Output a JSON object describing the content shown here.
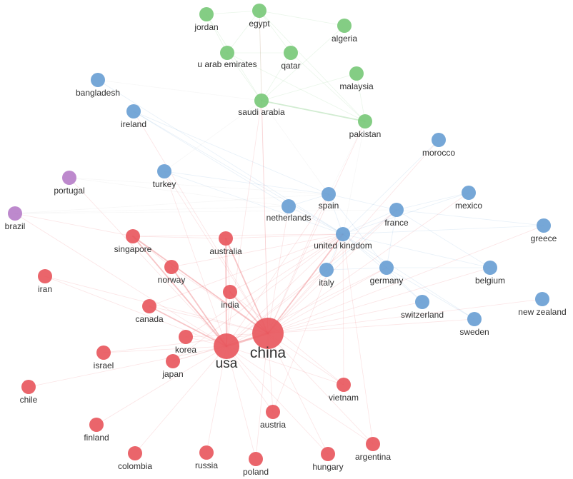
{
  "colors": {
    "red_cluster": "#e8585e",
    "blue_cluster": "#6a9fd4",
    "green_cluster": "#7ac97a",
    "purple_cluster": "#b77fc9",
    "edge_grey": "#cfcfcf"
  },
  "nodes": [
    {
      "id": "china",
      "label": "china",
      "cluster": "red",
      "weight": 5
    },
    {
      "id": "usa",
      "label": "usa",
      "cluster": "red",
      "weight": 4
    },
    {
      "id": "singapore",
      "label": "singapore",
      "cluster": "red",
      "weight": 1
    },
    {
      "id": "australia",
      "label": "australia",
      "cluster": "red",
      "weight": 1
    },
    {
      "id": "iran",
      "label": "iran",
      "cluster": "red",
      "weight": 1
    },
    {
      "id": "norway",
      "label": "norway",
      "cluster": "red",
      "weight": 1
    },
    {
      "id": "india",
      "label": "india",
      "cluster": "red",
      "weight": 1
    },
    {
      "id": "canada",
      "label": "canada",
      "cluster": "red",
      "weight": 1
    },
    {
      "id": "korea",
      "label": "korea",
      "cluster": "red",
      "weight": 1
    },
    {
      "id": "israel",
      "label": "israel",
      "cluster": "red",
      "weight": 1
    },
    {
      "id": "japan",
      "label": "japan",
      "cluster": "red",
      "weight": 1
    },
    {
      "id": "chile",
      "label": "chile",
      "cluster": "red",
      "weight": 1
    },
    {
      "id": "vietnam",
      "label": "vietnam",
      "cluster": "red",
      "weight": 1
    },
    {
      "id": "austria",
      "label": "austria",
      "cluster": "red",
      "weight": 1
    },
    {
      "id": "finland",
      "label": "finland",
      "cluster": "red",
      "weight": 1
    },
    {
      "id": "argentina",
      "label": "argentina",
      "cluster": "red",
      "weight": 1
    },
    {
      "id": "colombia",
      "label": "colombia",
      "cluster": "red",
      "weight": 1
    },
    {
      "id": "russia",
      "label": "russia",
      "cluster": "red",
      "weight": 1
    },
    {
      "id": "poland",
      "label": "poland",
      "cluster": "red",
      "weight": 1
    },
    {
      "id": "hungary",
      "label": "hungary",
      "cluster": "red",
      "weight": 1
    },
    {
      "id": "jordan",
      "label": "jordan",
      "cluster": "green",
      "weight": 1
    },
    {
      "id": "egypt",
      "label": "egypt",
      "cluster": "green",
      "weight": 1
    },
    {
      "id": "algeria",
      "label": "algeria",
      "cluster": "green",
      "weight": 1
    },
    {
      "id": "uae",
      "label": "u arab emirates",
      "cluster": "green",
      "weight": 1
    },
    {
      "id": "qatar",
      "label": "qatar",
      "cluster": "green",
      "weight": 1
    },
    {
      "id": "malaysia",
      "label": "malaysia",
      "cluster": "green",
      "weight": 1
    },
    {
      "id": "saudi",
      "label": "saudi arabia",
      "cluster": "green",
      "weight": 1
    },
    {
      "id": "pakistan",
      "label": "pakistan",
      "cluster": "green",
      "weight": 1
    },
    {
      "id": "bangladesh",
      "label": "bangladesh",
      "cluster": "blue",
      "weight": 1
    },
    {
      "id": "ireland",
      "label": "ireland",
      "cluster": "blue",
      "weight": 1
    },
    {
      "id": "morocco",
      "label": "morocco",
      "cluster": "blue",
      "weight": 1
    },
    {
      "id": "turkey",
      "label": "turkey",
      "cluster": "blue",
      "weight": 1
    },
    {
      "id": "spain",
      "label": "spain",
      "cluster": "blue",
      "weight": 1
    },
    {
      "id": "mexico",
      "label": "mexico",
      "cluster": "blue",
      "weight": 1
    },
    {
      "id": "netherlands",
      "label": "netherlands",
      "cluster": "blue",
      "weight": 1
    },
    {
      "id": "france",
      "label": "france",
      "cluster": "blue",
      "weight": 1
    },
    {
      "id": "greece",
      "label": "greece",
      "cluster": "blue",
      "weight": 1
    },
    {
      "id": "uk",
      "label": "united kingdom",
      "cluster": "blue",
      "weight": 1
    },
    {
      "id": "italy",
      "label": "italy",
      "cluster": "blue",
      "weight": 1
    },
    {
      "id": "germany",
      "label": "germany",
      "cluster": "blue",
      "weight": 1
    },
    {
      "id": "belgium",
      "label": "belgium",
      "cluster": "blue",
      "weight": 1
    },
    {
      "id": "switzerland",
      "label": "switzerland",
      "cluster": "blue",
      "weight": 1
    },
    {
      "id": "new_zealand",
      "label": "new zealand",
      "cluster": "blue",
      "weight": 1
    },
    {
      "id": "sweden",
      "label": "sweden",
      "cluster": "blue",
      "weight": 1
    },
    {
      "id": "portugal",
      "label": "portugal",
      "cluster": "purple",
      "weight": 1
    },
    {
      "id": "brazil",
      "label": "brazil",
      "cluster": "purple",
      "weight": 1
    }
  ],
  "edges": [
    [
      "china",
      "usa",
      3
    ],
    [
      "china",
      "singapore",
      2
    ],
    [
      "china",
      "australia",
      2
    ],
    [
      "china",
      "india",
      2
    ],
    [
      "china",
      "norway",
      1
    ],
    [
      "china",
      "canada",
      1
    ],
    [
      "china",
      "korea",
      1
    ],
    [
      "china",
      "japan",
      1
    ],
    [
      "china",
      "uk",
      2
    ],
    [
      "china",
      "spain",
      1
    ],
    [
      "china",
      "netherlands",
      1
    ],
    [
      "china",
      "france",
      1
    ],
    [
      "china",
      "italy",
      1
    ],
    [
      "china",
      "germany",
      1
    ],
    [
      "china",
      "switzerland",
      1
    ],
    [
      "china",
      "saudi",
      1
    ],
    [
      "china",
      "pakistan",
      1
    ],
    [
      "china",
      "vietnam",
      1
    ],
    [
      "china",
      "austria",
      1
    ],
    [
      "china",
      "argentina",
      1
    ],
    [
      "china",
      "mexico",
      1
    ],
    [
      "china",
      "belgium",
      1
    ],
    [
      "china",
      "sweden",
      1
    ],
    [
      "china",
      "new_zealand",
      1
    ],
    [
      "china",
      "turkey",
      1
    ],
    [
      "china",
      "poland",
      1
    ],
    [
      "china",
      "hungary",
      1
    ],
    [
      "china",
      "egypt",
      1
    ],
    [
      "china",
      "greece",
      1
    ],
    [
      "china",
      "morocco",
      1
    ],
    [
      "china",
      "ireland",
      1
    ],
    [
      "china",
      "iran",
      1
    ],
    [
      "china",
      "israel",
      1
    ],
    [
      "usa",
      "singapore",
      2
    ],
    [
      "usa",
      "australia",
      2
    ],
    [
      "usa",
      "india",
      1
    ],
    [
      "usa",
      "norway",
      2
    ],
    [
      "usa",
      "canada",
      2
    ],
    [
      "usa",
      "korea",
      1
    ],
    [
      "usa",
      "japan",
      1
    ],
    [
      "usa",
      "israel",
      1
    ],
    [
      "usa",
      "chile",
      1
    ],
    [
      "usa",
      "iran",
      1
    ],
    [
      "usa",
      "finland",
      1
    ],
    [
      "usa",
      "colombia",
      1
    ],
    [
      "usa",
      "russia",
      1
    ],
    [
      "usa",
      "poland",
      1
    ],
    [
      "usa",
      "vietnam",
      1
    ],
    [
      "usa",
      "austria",
      1
    ],
    [
      "usa",
      "uk",
      1
    ],
    [
      "usa",
      "spain",
      1
    ],
    [
      "usa",
      "brazil",
      1
    ],
    [
      "usa",
      "portugal",
      1
    ],
    [
      "usa",
      "turkey",
      1
    ],
    [
      "usa",
      "hungary",
      1
    ],
    [
      "usa",
      "argentina",
      1
    ],
    [
      "usa",
      "italy",
      1
    ],
    [
      "usa",
      "germany",
      1
    ],
    [
      "usa",
      "france",
      1
    ],
    [
      "usa",
      "saudi",
      1
    ],
    [
      "singapore",
      "australia",
      1
    ],
    [
      "singapore",
      "norway",
      1
    ],
    [
      "singapore",
      "brazil",
      1
    ],
    [
      "singapore",
      "uk",
      1
    ],
    [
      "australia",
      "uk",
      1
    ],
    [
      "australia",
      "india",
      1
    ],
    [
      "uk",
      "germany",
      1
    ],
    [
      "uk",
      "italy",
      1
    ],
    [
      "uk",
      "spain",
      1
    ],
    [
      "uk",
      "france",
      1
    ],
    [
      "uk",
      "switzerland",
      1
    ],
    [
      "uk",
      "netherlands",
      1
    ],
    [
      "uk",
      "mexico",
      1
    ],
    [
      "uk",
      "belgium",
      1
    ],
    [
      "uk",
      "sweden",
      1
    ],
    [
      "uk",
      "greece",
      1
    ],
    [
      "uk",
      "morocco",
      1
    ],
    [
      "uk",
      "pakistan",
      1
    ],
    [
      "uk",
      "bangladesh",
      1
    ],
    [
      "uk",
      "ireland",
      1
    ],
    [
      "germany",
      "italy",
      1
    ],
    [
      "germany",
      "france",
      1
    ],
    [
      "germany",
      "switzerland",
      1
    ],
    [
      "germany",
      "belgium",
      1
    ],
    [
      "germany",
      "spain",
      1
    ],
    [
      "germany",
      "sweden",
      1
    ],
    [
      "france",
      "spain",
      1
    ],
    [
      "france",
      "mexico",
      1
    ],
    [
      "france",
      "italy",
      1
    ],
    [
      "france",
      "belgium",
      1
    ],
    [
      "france",
      "greece",
      1
    ],
    [
      "saudi",
      "pakistan",
      2
    ],
    [
      "saudi",
      "egypt",
      1
    ],
    [
      "saudi",
      "uae",
      1
    ],
    [
      "saudi",
      "qatar",
      1
    ],
    [
      "saudi",
      "malaysia",
      1
    ],
    [
      "saudi",
      "jordan",
      1
    ],
    [
      "saudi",
      "algeria",
      1
    ],
    [
      "saudi",
      "turkey",
      1
    ],
    [
      "saudi",
      "spain",
      1
    ],
    [
      "pakistan",
      "malaysia",
      1
    ],
    [
      "pakistan",
      "qatar",
      1
    ],
    [
      "pakistan",
      "uae",
      1
    ],
    [
      "pakistan",
      "egypt",
      1
    ],
    [
      "pakistan",
      "spain",
      1
    ],
    [
      "egypt",
      "jordan",
      1
    ],
    [
      "egypt",
      "algeria",
      1
    ],
    [
      "egypt",
      "uae",
      1
    ],
    [
      "egypt",
      "qatar",
      1
    ],
    [
      "jordan",
      "uae",
      1
    ],
    [
      "qatar",
      "uae",
      1
    ],
    [
      "portugal",
      "spain",
      1
    ],
    [
      "brazil",
      "spain",
      1
    ],
    [
      "brazil",
      "netherlands",
      1
    ],
    [
      "brazil",
      "france",
      1
    ],
    [
      "portugal",
      "netherlands",
      1
    ],
    [
      "bangladesh",
      "saudi",
      1
    ],
    [
      "ireland",
      "spain",
      1
    ],
    [
      "ireland",
      "netherlands",
      1
    ],
    [
      "turkey",
      "spain",
      1
    ],
    [
      "turkey",
      "uk",
      1
    ],
    [
      "netherlands",
      "spain",
      1
    ],
    [
      "india",
      "uk",
      1
    ],
    [
      "india",
      "vietnam",
      1
    ],
    [
      "vietnam",
      "uk",
      1
    ],
    [
      "canada",
      "uk",
      1
    ],
    [
      "norway",
      "uk",
      1
    ],
    [
      "korea",
      "uk",
      1
    ],
    [
      "japan",
      "uk",
      1
    ],
    [
      "austria",
      "uk",
      1
    ],
    [
      "argentina",
      "uk",
      1
    ]
  ]
}
